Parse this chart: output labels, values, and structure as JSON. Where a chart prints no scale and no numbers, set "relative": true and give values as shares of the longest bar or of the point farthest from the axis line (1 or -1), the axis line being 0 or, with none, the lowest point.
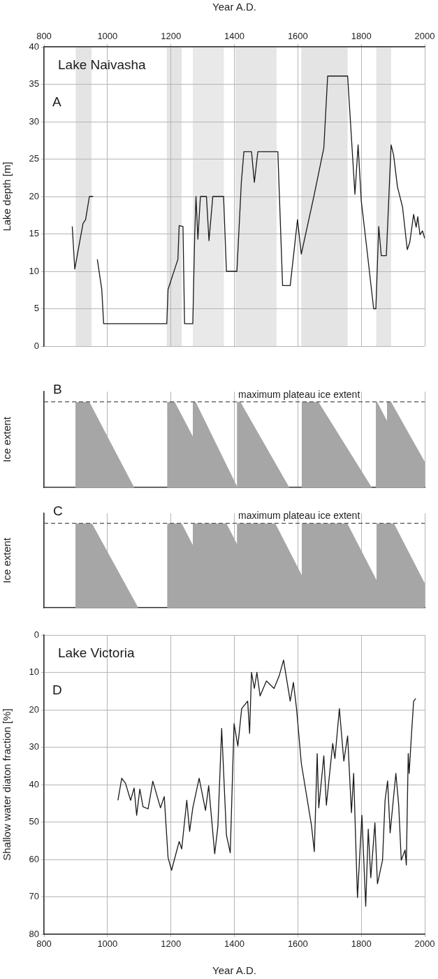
{
  "chart_data": [
    {
      "type": "line",
      "xlabel": "Year A.D.",
      "ylabel": "Lake depth [m]",
      "annotations": [
        "Lake Naivasha",
        "A"
      ],
      "xlim": [
        800,
        2000
      ],
      "xticks": [
        800,
        1000,
        1200,
        1400,
        1600,
        1800,
        2000
      ],
      "ylim": [
        0,
        40
      ],
      "yticks": [
        0,
        5,
        10,
        15,
        20,
        25,
        30,
        35,
        40
      ],
      "grid": true,
      "legend": false,
      "marker": "none",
      "line_style": "solid",
      "bands": [
        {
          "axis": "x",
          "from": 900,
          "to": 950,
          "color": "#e4e4e4"
        },
        {
          "axis": "x",
          "from": 1187,
          "to": 1234,
          "color": "#e4e4e4"
        },
        {
          "axis": "x",
          "from": 1269,
          "to": 1367,
          "color": "#e9e9e9"
        },
        {
          "axis": "x",
          "from": 1403,
          "to": 1533,
          "color": "#e6e6e6"
        },
        {
          "axis": "x",
          "from": 1611,
          "to": 1757,
          "color": "#e4e4e4"
        },
        {
          "axis": "x",
          "from": 1847,
          "to": 1894,
          "color": "#e6e6e6"
        }
      ],
      "series": [
        {
          "color": "#1a1a1a",
          "x": [
            889,
            897,
            911,
            923,
            931,
            943,
            955,
            960,
            968,
            982,
            988,
            1187,
            1191,
            1222,
            1226,
            1238,
            1243,
            1269,
            1275,
            1279,
            1285,
            1293,
            1312,
            1320,
            1332,
            1366,
            1375,
            1408,
            1422,
            1430,
            1454,
            1463,
            1474,
            1537,
            1552,
            1576,
            1599,
            1611,
            1651,
            1682,
            1694,
            1757,
            1780,
            1790,
            1800,
            1816,
            1839,
            1846,
            1855,
            1863,
            1879,
            1894,
            1902,
            1914,
            1930,
            1945,
            1953,
            1965,
            1973,
            1978,
            1985,
            1993,
            2000
          ],
          "values": [
            16.0,
            10.3,
            13.6,
            16.4,
            16.9,
            20.0,
            20.0,
            null,
            11.6,
            7.6,
            3.0,
            3.0,
            7.6,
            11.6,
            16.1,
            16.0,
            3.0,
            3.0,
            14.9,
            20.0,
            14.3,
            20.0,
            20.0,
            14.1,
            20.0,
            20.0,
            10.0,
            10.0,
            21.9,
            26.0,
            26.0,
            21.9,
            26.0,
            26.0,
            8.1,
            8.1,
            16.9,
            12.3,
            20.1,
            26.5,
            36.1,
            36.1,
            20.3,
            26.9,
            19.4,
            13.6,
            5.0,
            5.0,
            16.0,
            12.1,
            12.1,
            26.9,
            25.5,
            21.3,
            18.6,
            12.9,
            13.9,
            17.6,
            15.9,
            17.3,
            14.9,
            15.4,
            14.4
          ]
        }
      ]
    },
    {
      "type": "area",
      "ylabel": "Ice extent",
      "annotations": [
        "B"
      ],
      "relative": true,
      "xlim": [
        800,
        2000
      ],
      "xticks": [
        800,
        1000,
        1200,
        1400,
        1600,
        1800,
        2000
      ],
      "tick_labels": false,
      "grid": "x",
      "legend": false,
      "marker": "none",
      "ref_lines": [
        {
          "axis": "y",
          "value": 1,
          "label": "maximum plateau ice extent",
          "line_style": "dashed",
          "color": "#555555"
        }
      ],
      "series": [
        {
          "color": "#a6a6a6",
          "x": [
            899,
            899,
            943,
            1084
          ],
          "values": [
            0,
            1,
            1,
            0
          ]
        },
        {
          "color": "#a6a6a6",
          "x": [
            1188,
            1188,
            1212,
            1353
          ],
          "values": [
            0,
            1,
            1,
            0
          ]
        },
        {
          "color": "#a6a6a6",
          "x": [
            1269,
            1269,
            1278,
            1410
          ],
          "values": [
            0,
            1,
            1,
            0
          ]
        },
        {
          "color": "#a6a6a6",
          "x": [
            1408,
            1408,
            1419,
            1573
          ],
          "values": [
            0,
            1,
            1,
            0
          ]
        },
        {
          "color": "#a6a6a6",
          "x": [
            1612,
            1612,
            1665,
            1833
          ],
          "values": [
            0,
            1,
            1,
            0
          ]
        },
        {
          "color": "#a6a6a6",
          "x": [
            1846,
            1846,
            1850,
            1991
          ],
          "values": [
            0,
            1,
            1,
            0
          ]
        },
        {
          "color": "#a6a6a6",
          "x": [
            1881,
            1881,
            1894,
            2000
          ],
          "values": [
            0,
            1,
            1,
            0.3
          ]
        }
      ]
    },
    {
      "type": "area",
      "ylabel": "Ice extent",
      "annotations": [
        "C"
      ],
      "relative": true,
      "xlim": [
        800,
        2000
      ],
      "xticks": [
        800,
        1000,
        1200,
        1400,
        1600,
        1800,
        2000
      ],
      "tick_labels": false,
      "grid": "x",
      "legend": false,
      "marker": "none",
      "ref_lines": [
        {
          "axis": "y",
          "value": 1,
          "label": "maximum plateau ice extent",
          "line_style": "dashed",
          "color": "#555555"
        }
      ],
      "series": [
        {
          "color": "#a6a6a6",
          "x": [
            899,
            899,
            951,
            1097
          ],
          "values": [
            0,
            1,
            1,
            0
          ]
        },
        {
          "color": "#a6a6a6",
          "x": [
            1188,
            1188,
            1234,
            1370
          ],
          "values": [
            0,
            1,
            1,
            0
          ]
        },
        {
          "color": "#a6a6a6",
          "x": [
            1269,
            1269,
            1375,
            1511
          ],
          "values": [
            0,
            1,
            1,
            0
          ]
        },
        {
          "color": "#a6a6a6",
          "x": [
            1408,
            1408,
            1529,
            1665
          ],
          "values": [
            0,
            1,
            1,
            0
          ]
        },
        {
          "color": "#a6a6a6",
          "x": [
            1612,
            1612,
            1756,
            1893
          ],
          "values": [
            0,
            1,
            1,
            0
          ]
        },
        {
          "color": "#a6a6a6",
          "x": [
            1848,
            1848,
            1903,
            2000
          ],
          "values": [
            0,
            1,
            1,
            0.29
          ]
        }
      ]
    },
    {
      "type": "line",
      "xlabel": "Year A.D.",
      "ylabel": "Shallow water diaton fraction [%]",
      "annotations": [
        "Lake Victoria",
        "D"
      ],
      "xlim": [
        800,
        2000
      ],
      "xticks": [
        800,
        1000,
        1200,
        1400,
        1600,
        1800,
        2000
      ],
      "ylim": [
        80,
        0
      ],
      "yticks": [
        0,
        10,
        20,
        30,
        40,
        50,
        60,
        70,
        80
      ],
      "grid": true,
      "legend": false,
      "marker": "none",
      "line_style": "solid",
      "series": [
        {
          "color": "#1a1a1a",
          "x": [
            1033,
            1045,
            1057,
            1073,
            1084,
            1092,
            1102,
            1112,
            1128,
            1143,
            1167,
            1179,
            1191,
            1202,
            1226,
            1234,
            1250,
            1259,
            1269,
            1289,
            1309,
            1319,
            1328,
            1338,
            1348,
            1360,
            1375,
            1387,
            1399,
            1411,
            1423,
            1442,
            1448,
            1454,
            1463,
            1471,
            1481,
            1501,
            1525,
            1541,
            1555,
            1576,
            1586,
            1596,
            1611,
            1643,
            1652,
            1661,
            1666,
            1682,
            1690,
            1710,
            1717,
            1731,
            1745,
            1757,
            1769,
            1776,
            1784,
            1788,
            1802,
            1814,
            1822,
            1830,
            1843,
            1851,
            1867,
            1875,
            1883,
            1891,
            1909,
            1918,
            1926,
            1938,
            1942,
            1948,
            1951,
            1957,
            1965,
            1972
          ],
          "values": [
            44.2,
            38.3,
            39.7,
            44.2,
            40.9,
            48.2,
            41.2,
            45.9,
            46.5,
            39.1,
            46.2,
            43.2,
            59.5,
            62.9,
            55.2,
            57.2,
            44.2,
            52.5,
            46.2,
            38.3,
            46.9,
            40.3,
            48.9,
            58.5,
            51.2,
            25,
            53.5,
            58.2,
            23.7,
            29.7,
            19.7,
            17.7,
            26.3,
            10,
            14.3,
            10,
            16.3,
            12.3,
            14.3,
            11,
            6.7,
            17.7,
            12.7,
            19.7,
            34.3,
            50.9,
            57.9,
            31.7,
            46.2,
            32.3,
            45.5,
            29,
            33,
            19.7,
            33.7,
            27,
            47.5,
            37,
            59.5,
            70.2,
            48.2,
            72.5,
            51.9,
            64.9,
            50.2,
            66.5,
            60.2,
            44.2,
            39,
            52.9,
            37,
            45.5,
            60.2,
            57.5,
            61.5,
            31.7,
            37,
            28.3,
            17.7,
            17
          ]
        }
      ]
    }
  ]
}
